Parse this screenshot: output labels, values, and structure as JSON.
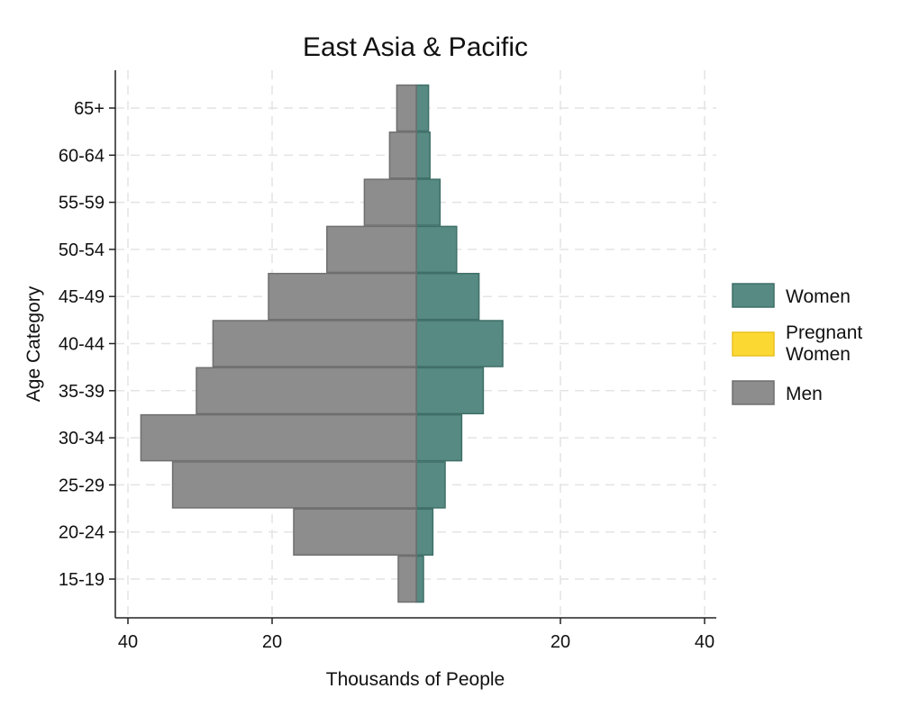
{
  "chart_data": {
    "type": "bar",
    "orientation": "horizontal",
    "layout": "population-pyramid",
    "title": "East Asia & Pacific",
    "xlabel": "Thousands of People",
    "ylabel": "Age Category",
    "categories": [
      "15-19",
      "20-24",
      "25-29",
      "30-34",
      "35-39",
      "40-44",
      "45-49",
      "50-54",
      "55-59",
      "60-64",
      "65+"
    ],
    "xlim": [
      -40,
      40
    ],
    "x_ticks": [
      -40,
      -20,
      20,
      40
    ],
    "x_tick_labels": [
      "40",
      "20",
      "20",
      "40"
    ],
    "grid": true,
    "legend_position": "right",
    "series": [
      {
        "name": "Women",
        "color": "#568a82",
        "side": "right",
        "values": [
          1.0,
          2.3,
          4.0,
          6.3,
          9.3,
          12.0,
          8.7,
          5.6,
          3.3,
          1.9,
          1.7
        ]
      },
      {
        "name": "Pregnant Women",
        "color": "#fcd932",
        "side": "right",
        "values": [
          0,
          0,
          0,
          0,
          0,
          0,
          0,
          0,
          0,
          0,
          0
        ]
      },
      {
        "name": "Men",
        "color": "#8d8d8d",
        "side": "left",
        "values": [
          2.5,
          17.0,
          33.8,
          38.2,
          30.5,
          28.2,
          20.5,
          12.4,
          7.2,
          3.7,
          2.7
        ]
      }
    ],
    "legend": [
      {
        "label": "Women",
        "color": "#568a82"
      },
      {
        "label": "Pregnant\nWomen",
        "color": "#fcd932"
      },
      {
        "label": "Men",
        "color": "#8d8d8d"
      }
    ]
  }
}
